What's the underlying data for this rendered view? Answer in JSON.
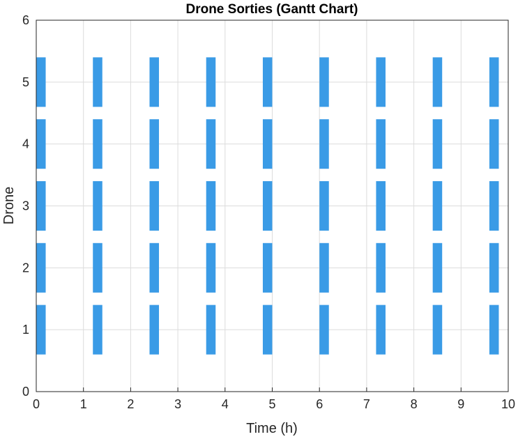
{
  "chart_data": {
    "type": "gantt",
    "title": "Drone Sorties (Gantt Chart)",
    "xlabel": "Time (h)",
    "ylabel": "Drone",
    "xlim": [
      0,
      10
    ],
    "ylim": [
      0,
      6
    ],
    "xticks": [
      "0",
      "1",
      "2",
      "3",
      "4",
      "5",
      "6",
      "7",
      "8",
      "9",
      "10"
    ],
    "yticks": [
      "0",
      "1",
      "2",
      "3",
      "4",
      "5",
      "6"
    ],
    "grid": true,
    "bar_color": "#3a9be6",
    "bar_height": 0.8,
    "drones": [
      1,
      2,
      3,
      4,
      5
    ],
    "sorties": [
      {
        "start": 0.0,
        "end": 0.2
      },
      {
        "start": 1.2,
        "end": 1.4
      },
      {
        "start": 2.4,
        "end": 2.6
      },
      {
        "start": 3.6,
        "end": 3.8
      },
      {
        "start": 4.8,
        "end": 5.0
      },
      {
        "start": 6.0,
        "end": 6.2
      },
      {
        "start": 7.2,
        "end": 7.4
      },
      {
        "start": 8.4,
        "end": 8.6
      },
      {
        "start": 9.6,
        "end": 9.8
      }
    ]
  }
}
